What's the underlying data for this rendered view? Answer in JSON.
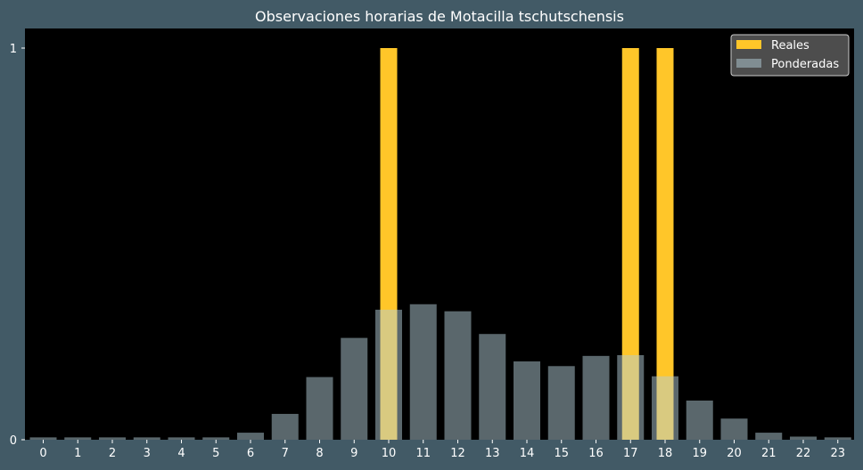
{
  "chart_data": {
    "type": "bar",
    "title": "Observaciones horarias de Motacilla tschutschensis",
    "xlabel": "",
    "ylabel": "",
    "categories": [
      "0",
      "1",
      "2",
      "3",
      "4",
      "5",
      "6",
      "7",
      "8",
      "9",
      "10",
      "11",
      "12",
      "13",
      "14",
      "15",
      "16",
      "17",
      "18",
      "19",
      "20",
      "21",
      "22",
      "23"
    ],
    "ylim": [
      0,
      1.05
    ],
    "yticks": [
      0,
      1
    ],
    "grid": false,
    "legend_position": "top-right",
    "series": [
      {
        "name": "Reales",
        "color": "#ffc629",
        "opacity": 1,
        "values": [
          0,
          0,
          0,
          0,
          0,
          0,
          0,
          0,
          0,
          0,
          1,
          0,
          0,
          0,
          0,
          0,
          0,
          1,
          1,
          0,
          0,
          0,
          0,
          0
        ]
      },
      {
        "name": "Ponderadas",
        "color": "#b4cdd7",
        "opacity": 0.5,
        "values": [
          0.006,
          0.006,
          0.006,
          0.006,
          0.006,
          0.006,
          0.018,
          0.066,
          0.16,
          0.26,
          0.332,
          0.346,
          0.328,
          0.27,
          0.2,
          0.188,
          0.214,
          0.216,
          0.162,
          0.1,
          0.054,
          0.018,
          0.008,
          0.006
        ]
      }
    ],
    "colors": {
      "figure_background": "#425a66",
      "plot_background": "#000000",
      "legend_background": "#4d4d4d"
    }
  }
}
